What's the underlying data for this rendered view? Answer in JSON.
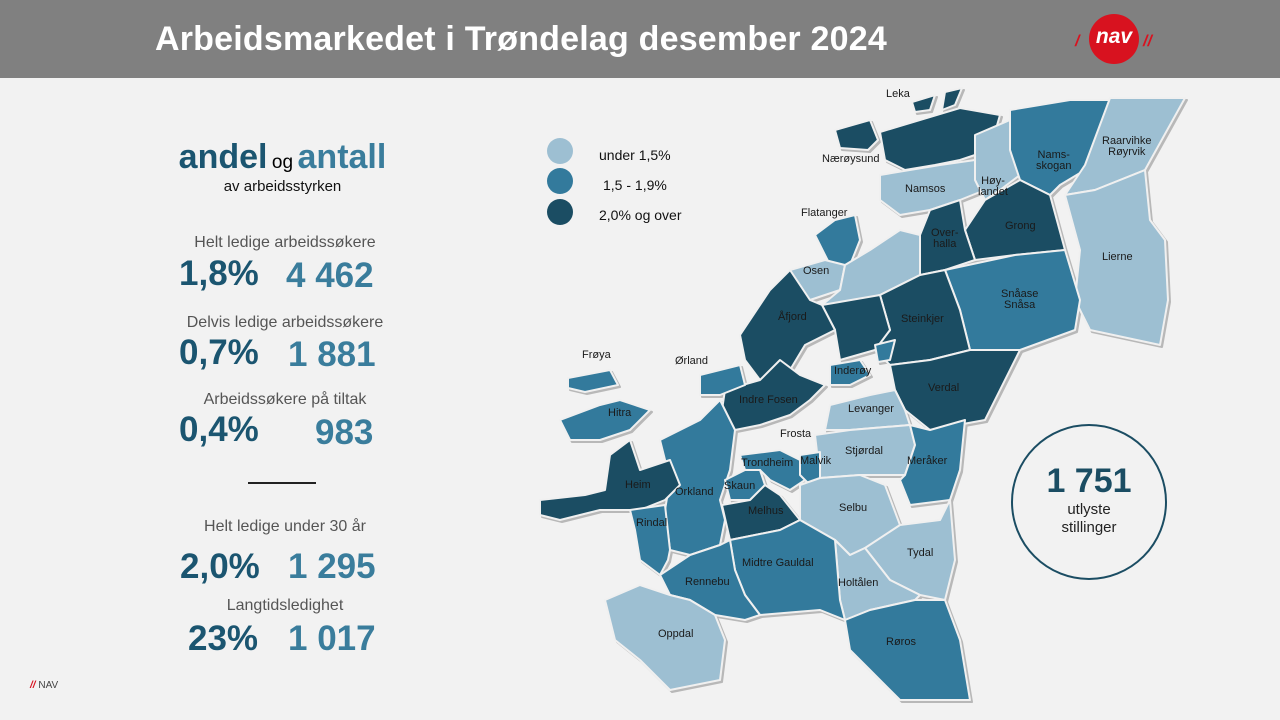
{
  "header": {
    "title": "Arbeidsmarkedet i Trøndelag desember 2024",
    "logo_text": "nav"
  },
  "colors": {
    "light": "#9dbfd2",
    "medium": "#337a9c",
    "dark": "#1b4d63",
    "header": "#808080",
    "brand_red": "#d8121f"
  },
  "summary": {
    "heading_andel": "andel",
    "heading_og": "og",
    "heading_antall": "antall",
    "subheading": "av arbeidsstyrken",
    "stats": [
      {
        "label": "Helt ledige arbeidssøkere",
        "percent": "1,8%",
        "count": "4 462"
      },
      {
        "label": "Delvis ledige arbeidssøkere",
        "percent": "0,7%",
        "count": "1 881"
      },
      {
        "label": "Arbeidssøkere på tiltak",
        "percent": "0,4%",
        "count": "983"
      },
      {
        "label": "Helt ledige under 30 år",
        "percent": "2,0%",
        "count": "1 295"
      },
      {
        "label": "Langtidsledighet",
        "percent": "23%",
        "count": "1 017"
      }
    ]
  },
  "legend": [
    {
      "level": "light",
      "label": "under 1,5%"
    },
    {
      "level": "medium",
      "label": "1,5 - 1,9%"
    },
    {
      "level": "dark",
      "label": "2,0% og over"
    }
  ],
  "map": {
    "municipalities": [
      {
        "name": "Leka",
        "level": "dark"
      },
      {
        "name": "Nærøysund",
        "level": "dark"
      },
      {
        "name": "Namsos",
        "level": "light"
      },
      {
        "name": "Høy-\nlandet",
        "level": "light"
      },
      {
        "name": "Nams-\nskogan",
        "level": "medium"
      },
      {
        "name": "Raarvihke\nRøyrvik",
        "level": "light"
      },
      {
        "name": "Lierne",
        "level": "light"
      },
      {
        "name": "Grong",
        "level": "dark"
      },
      {
        "name": "Over-\nhalla",
        "level": "dark"
      },
      {
        "name": "Snåase\nSnåsa",
        "level": "medium"
      },
      {
        "name": "Flatanger",
        "level": "medium"
      },
      {
        "name": "Osen",
        "level": "light"
      },
      {
        "name": "Steinkjer",
        "level": "dark"
      },
      {
        "name": "Åfjord",
        "level": "dark"
      },
      {
        "name": "Verdal",
        "level": "dark"
      },
      {
        "name": "Inderøy",
        "level": "medium"
      },
      {
        "name": "Indre Fosen",
        "level": "dark"
      },
      {
        "name": "Ørland",
        "level": "medium"
      },
      {
        "name": "Frøya",
        "level": "medium"
      },
      {
        "name": "Hitra",
        "level": "medium"
      },
      {
        "name": "Levanger",
        "level": "light"
      },
      {
        "name": "Stjørdal",
        "level": "light"
      },
      {
        "name": "Meråker",
        "level": "medium"
      },
      {
        "name": "Frosta",
        "level": "light"
      },
      {
        "name": "Orkland",
        "level": "medium"
      },
      {
        "name": "Heim",
        "level": "dark"
      },
      {
        "name": "Rindal",
        "level": "medium"
      },
      {
        "name": "Trondheim",
        "level": "medium"
      },
      {
        "name": "Malvik",
        "level": "medium"
      },
      {
        "name": "Skaun",
        "level": "medium"
      },
      {
        "name": "Melhus",
        "level": "dark"
      },
      {
        "name": "Midtre Gauldal",
        "level": "medium"
      },
      {
        "name": "Selbu",
        "level": "light"
      },
      {
        "name": "Tydal",
        "level": "light"
      },
      {
        "name": "Holtålen",
        "level": "light"
      },
      {
        "name": "Rennebu",
        "level": "medium"
      },
      {
        "name": "Oppdal",
        "level": "light"
      },
      {
        "name": "Røros",
        "level": "medium"
      }
    ]
  },
  "jobs": {
    "count": "1 751",
    "label_line1": "utlyste",
    "label_line2": "stillinger"
  },
  "footer": {
    "slashes": "//",
    "brand": "NAV"
  }
}
